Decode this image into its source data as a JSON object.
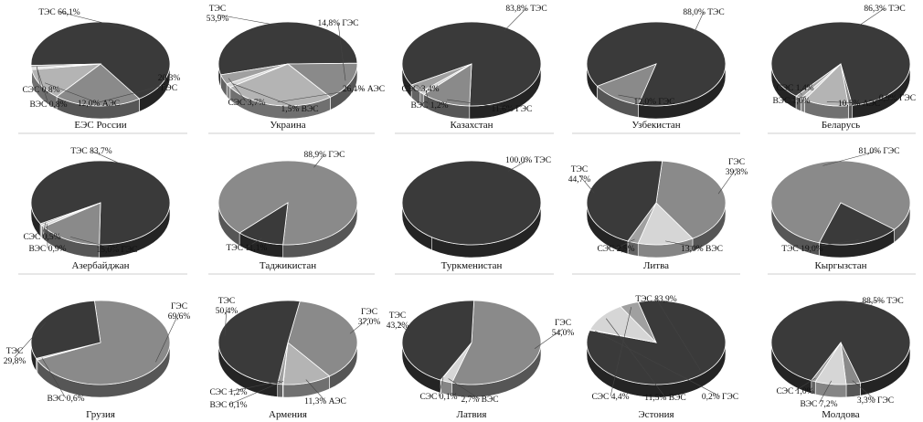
{
  "chart_data": [
    {
      "type": "pie",
      "title": "ЕЭС России",
      "slices": [
        {
          "label": "ТЭС",
          "text": "ТЭС 66,1%",
          "value": 66.1,
          "color": "#3a3a3a"
        },
        {
          "label": "ГЭС",
          "text": [
            "20,3%",
            "ГЭС"
          ],
          "value": 20.3,
          "color": "#8a8a8a"
        },
        {
          "label": "АЭС",
          "text": "12,0% АЭС",
          "value": 12.0,
          "color": "#b4b4b4"
        },
        {
          "label": "ВЭС",
          "text": "ВЭС 0,8%",
          "value": 0.8,
          "color": "#d6d6d6"
        },
        {
          "label": "СЭС",
          "text": "СЭС 0,8%",
          "value": 0.8,
          "color": "#a0a0a0"
        }
      ]
    },
    {
      "type": "pie",
      "title": "Украина",
      "slices": [
        {
          "label": "ТЭС",
          "text": [
            "ТЭС",
            "53,9%"
          ],
          "value": 53.9,
          "color": "#3a3a3a"
        },
        {
          "label": "ГЭС",
          "text": "14,8% ГЭС",
          "value": 14.8,
          "color": "#8a8a8a"
        },
        {
          "label": "АЭС",
          "text": "26,1% АЭС",
          "value": 26.1,
          "color": "#b4b4b4"
        },
        {
          "label": "ВЭС",
          "text": "1,5% ВЭС",
          "value": 1.5,
          "color": "#d6d6d6"
        },
        {
          "label": "СЭС",
          "text": "СЭС 3,7%",
          "value": 3.7,
          "color": "#a0a0a0"
        }
      ]
    },
    {
      "type": "pie",
      "title": "Казахстан",
      "slices": [
        {
          "label": "ТЭС",
          "text": "83,8% ТЭС",
          "value": 83.8,
          "color": "#3a3a3a"
        },
        {
          "label": "ГЭС",
          "text": "11,6% ГЭС",
          "value": 11.6,
          "color": "#8a8a8a"
        },
        {
          "label": "ВЭС",
          "text": "ВЭС 1,2%",
          "value": 1.2,
          "color": "#d6d6d6"
        },
        {
          "label": "СЭС",
          "text": "СЭС 3,4%",
          "value": 3.4,
          "color": "#a0a0a0"
        }
      ]
    },
    {
      "type": "pie",
      "title": "Узбекистан",
      "slices": [
        {
          "label": "ТЭС",
          "text": "88,0% ТЭС",
          "value": 88.0,
          "color": "#3a3a3a"
        },
        {
          "label": "ГЭС",
          "text": "12,0% ГЭС",
          "value": 12.0,
          "color": "#8a8a8a"
        }
      ]
    },
    {
      "type": "pie",
      "title": "Беларусь",
      "slices": [
        {
          "label": "ТЭС",
          "text": "86,3% ТЭС",
          "value": 86.3,
          "color": "#3a3a3a"
        },
        {
          "label": "ГЭС",
          "text": "0,9% ГЭС",
          "value": 0.9,
          "color": "#8a8a8a"
        },
        {
          "label": "АЭС",
          "text": "10,5% АЭС",
          "value": 10.5,
          "color": "#b4b4b4"
        },
        {
          "label": "ВЭС",
          "text": "ВЭС 1,0%",
          "value": 1.0,
          "color": "#d6d6d6"
        },
        {
          "label": "СЭС",
          "text": "СЭС 1,4%",
          "value": 1.4,
          "color": "#a0a0a0"
        }
      ]
    },
    {
      "type": "pie",
      "title": "Азербайджан",
      "slices": [
        {
          "label": "ТЭС",
          "text": "ТЭС 83,7%",
          "value": 83.7,
          "color": "#3a3a3a"
        },
        {
          "label": "ГЭС",
          "text": "15,0% ГЭС",
          "value": 15.0,
          "color": "#8a8a8a"
        },
        {
          "label": "ВЭС",
          "text": "ВЭС 0,9%",
          "value": 0.9,
          "color": "#d6d6d6"
        },
        {
          "label": "СЭС",
          "text": "СЭС 0,5%",
          "value": 0.5,
          "color": "#a0a0a0"
        }
      ]
    },
    {
      "type": "pie",
      "title": "Таджикистан",
      "slices": [
        {
          "label": "ГЭС",
          "text": "88,9% ГЭС",
          "value": 88.9,
          "color": "#8a8a8a"
        },
        {
          "label": "ТЭС",
          "text": "ТЭС 11,1%",
          "value": 11.1,
          "color": "#3a3a3a"
        }
      ]
    },
    {
      "type": "pie",
      "title": "Туркменистан",
      "slices": [
        {
          "label": "ТЭС",
          "text": "100,0% ТЭС",
          "value": 100.0,
          "color": "#3a3a3a"
        }
      ]
    },
    {
      "type": "pie",
      "title": "Литва",
      "slices": [
        {
          "label": "ГЭС",
          "text": [
            "ГЭС",
            "39,8%"
          ],
          "value": 39.8,
          "color": "#8a8a8a"
        },
        {
          "label": "ВЭС",
          "text": "13,0% ВЭС",
          "value": 13.0,
          "color": "#d6d6d6"
        },
        {
          "label": "СЭС",
          "text": "СЭС 2,5%",
          "value": 2.5,
          "color": "#a0a0a0"
        },
        {
          "label": "ТЭС",
          "text": [
            "ТЭС",
            "44,7%"
          ],
          "value": 44.7,
          "color": "#3a3a3a"
        }
      ]
    },
    {
      "type": "pie",
      "title": "Кыргызстан",
      "slices": [
        {
          "label": "ГЭС",
          "text": "81,0% ГЭС",
          "value": 81.0,
          "color": "#8a8a8a"
        },
        {
          "label": "ТЭС",
          "text": "ТЭС 19,0%",
          "value": 19.0,
          "color": "#3a3a3a"
        }
      ]
    },
    {
      "type": "pie",
      "title": "Грузия",
      "slices": [
        {
          "label": "ГЭС",
          "text": [
            "ГЭС",
            "69,6%"
          ],
          "value": 69.6,
          "color": "#8a8a8a"
        },
        {
          "label": "ВЭС",
          "text": "ВЭС 0,6%",
          "value": 0.6,
          "color": "#d6d6d6"
        },
        {
          "label": "ТЭС",
          "text": [
            "ТЭС",
            "29,8%"
          ],
          "value": 29.8,
          "color": "#3a3a3a"
        }
      ]
    },
    {
      "type": "pie",
      "title": "Армения",
      "slices": [
        {
          "label": "ГЭС",
          "text": [
            "ГЭС",
            "37,0%"
          ],
          "value": 37.0,
          "color": "#8a8a8a"
        },
        {
          "label": "АЭС",
          "text": "11,3% АЭС",
          "value": 11.3,
          "color": "#b4b4b4"
        },
        {
          "label": "ВЭС",
          "text": "ВЭС 0,1%",
          "value": 0.1,
          "color": "#d6d6d6"
        },
        {
          "label": "СЭС",
          "text": "СЭС 1,2%",
          "value": 1.2,
          "color": "#a0a0a0"
        },
        {
          "label": "ТЭС",
          "text": [
            "ТЭС",
            "50,4%"
          ],
          "value": 50.4,
          "color": "#3a3a3a"
        }
      ]
    },
    {
      "type": "pie",
      "title": "Латвия",
      "slices": [
        {
          "label": "ГЭС",
          "text": [
            "ГЭС",
            "54,0%"
          ],
          "value": 54.0,
          "color": "#8a8a8a"
        },
        {
          "label": "ВЭС",
          "text": "2,7% ВЭС",
          "value": 2.7,
          "color": "#d6d6d6"
        },
        {
          "label": "СЭС",
          "text": "СЭС 0,1%",
          "value": 0.1,
          "color": "#a0a0a0"
        },
        {
          "label": "ТЭС",
          "text": [
            "ТЭС",
            "43,2%"
          ],
          "value": 43.2,
          "color": "#3a3a3a"
        }
      ]
    },
    {
      "type": "pie",
      "title": "Эстония",
      "slices": [
        {
          "label": "ТЭС",
          "text": "ТЭС 83,9%",
          "value": 83.9,
          "color": "#3a3a3a"
        },
        {
          "label": "ГЭС",
          "text": "0,2% ГЭС",
          "value": 0.2,
          "color": "#8a8a8a"
        },
        {
          "label": "ВЭС",
          "text": "11,5% ВЭС",
          "value": 11.5,
          "color": "#d6d6d6"
        },
        {
          "label": "СЭС",
          "text": "СЭС 4,4%",
          "value": 4.4,
          "color": "#a0a0a0"
        }
      ]
    },
    {
      "type": "pie",
      "title": "Молдова",
      "slices": [
        {
          "label": "ТЭС",
          "text": "88,5% ТЭС",
          "value": 88.5,
          "color": "#3a3a3a"
        },
        {
          "label": "ГЭС",
          "text": "3,3% ГЭС",
          "value": 3.3,
          "color": "#8a8a8a"
        },
        {
          "label": "ВЭС",
          "text": "ВЭС 7,2%",
          "value": 7.2,
          "color": "#d6d6d6"
        },
        {
          "label": "СЭС",
          "text": "СЭС 1,0%",
          "value": 1.0,
          "color": "#a0a0a0"
        }
      ]
    }
  ]
}
